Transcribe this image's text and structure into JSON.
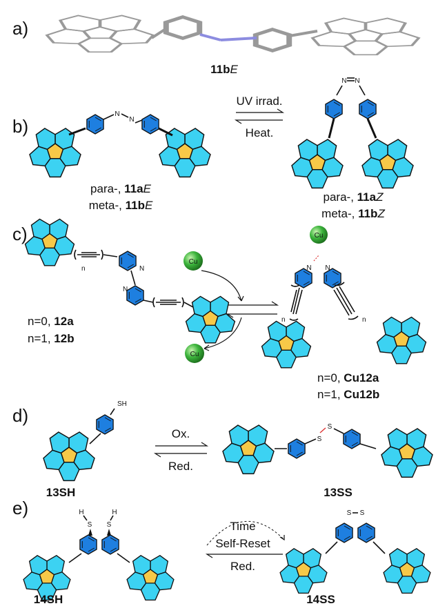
{
  "a": {
    "label": "a)",
    "compound": {
      "number": "11b",
      "isomer": "E"
    }
  },
  "b": {
    "label": "b)",
    "forward": "UV irrad.",
    "backward": "Heat.",
    "azo_left": [
      "N",
      "N"
    ],
    "azo_right": [
      "N",
      "N"
    ],
    "left_labels": [
      {
        "prefix": "para-, ",
        "number": "11a",
        "isomer": "E"
      },
      {
        "prefix": "meta-, ",
        "number": "11b",
        "isomer": "E"
      }
    ],
    "right_labels": [
      {
        "prefix": "para-, ",
        "number": "11a",
        "isomer": "Z"
      },
      {
        "prefix": "meta-, ",
        "number": "11b",
        "isomer": "Z"
      }
    ]
  },
  "c": {
    "label": "c)",
    "ligand_atoms": [
      "N",
      "N"
    ],
    "ligand_n": [
      "n",
      "n"
    ],
    "left_labels": [
      {
        "prefix": "n=0, ",
        "number": "12a"
      },
      {
        "prefix": "n=1, ",
        "number": "12b"
      }
    ],
    "metal": [
      "Cu",
      "Cu",
      "Cu"
    ],
    "complex_atoms": [
      "N",
      "N"
    ],
    "complex_n": [
      "n",
      "n"
    ],
    "right_labels": [
      {
        "prefix": "n=0, ",
        "number": "Cu12a"
      },
      {
        "prefix": "n=1, ",
        "number": "Cu12b"
      }
    ]
  },
  "d": {
    "label": "d)",
    "thiol": "SH",
    "forward": "Ox.",
    "backward": "Red.",
    "disulfide": [
      "S",
      "S"
    ],
    "left_name": "13SH",
    "right_name": "13SS"
  },
  "e": {
    "label": "e)",
    "thiol_atoms": [
      "H",
      "S",
      "S",
      "H"
    ],
    "disulfide": [
      "S",
      "S"
    ],
    "conditions": [
      "Time",
      "Self-Reset",
      "Red."
    ],
    "left_name": "14SH",
    "right_name": "14SS"
  }
}
